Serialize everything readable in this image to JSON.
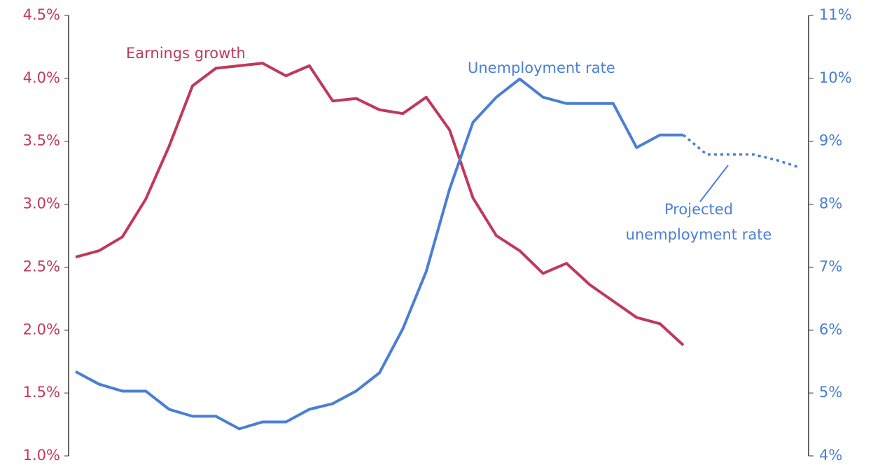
{
  "chart_data": {
    "type": "line",
    "categories": [
      null,
      null,
      null,
      null,
      null,
      null,
      null,
      null,
      null,
      null,
      null,
      null,
      null,
      null,
      null,
      null,
      null,
      null,
      null,
      null,
      null,
      null,
      null,
      null,
      null,
      null,
      null,
      null,
      null,
      null,
      null,
      null
    ],
    "series": [
      {
        "name": "Earnings growth",
        "color": "#c0395a",
        "line_style": "solid",
        "values": [
          2.58,
          2.63,
          2.74,
          3.04,
          3.46,
          3.94,
          4.08,
          4.1,
          4.12,
          4.02,
          4.1,
          3.82,
          3.84,
          3.75,
          3.72,
          3.85,
          3.59,
          3.05,
          2.75,
          2.63,
          2.45,
          2.53,
          2.36,
          2.23,
          2.1,
          2.05,
          1.88,
          null,
          null,
          null,
          null,
          null
        ]
      },
      {
        "name": "Unemployment rate",
        "color": "#4a7fd4",
        "axis": "y2",
        "line_style": "solid",
        "values": [
          5.34,
          5.14,
          5.03,
          5.03,
          4.74,
          4.63,
          4.63,
          4.43,
          4.54,
          4.54,
          4.74,
          4.83,
          5.03,
          5.32,
          6.02,
          6.93,
          8.24,
          9.3,
          9.7,
          9.99,
          9.7,
          9.6,
          9.6,
          9.6,
          8.9,
          9.1,
          9.1,
          null,
          null,
          null,
          null,
          null
        ]
      },
      {
        "name": "Projected unemployment rate",
        "color": "#4a7fd4",
        "axis": "y2",
        "line_style": "dotted",
        "values": [
          null,
          null,
          null,
          null,
          null,
          null,
          null,
          null,
          null,
          null,
          null,
          null,
          null,
          null,
          null,
          null,
          null,
          null,
          null,
          null,
          null,
          null,
          null,
          null,
          null,
          null,
          9.1,
          8.79,
          8.79,
          8.79,
          8.7,
          8.58
        ]
      }
    ],
    "ylim": [
      1.0,
      4.5
    ],
    "yticks": [
      {
        "value": 1.0,
        "label": "1.0%"
      },
      {
        "value": 1.5,
        "label": "1.5%"
      },
      {
        "value": 2.0,
        "label": "2.0%"
      },
      {
        "value": 2.5,
        "label": "2.5%"
      },
      {
        "value": 3.0,
        "label": "3.0%"
      },
      {
        "value": 3.5,
        "label": "3.5%"
      },
      {
        "value": 4.0,
        "label": "4.0%"
      },
      {
        "value": 4.5,
        "label": "4.5%"
      }
    ],
    "y2lim": [
      4,
      11
    ],
    "y2ticks": [
      {
        "value": 4,
        "label": "4%"
      },
      {
        "value": 5,
        "label": "5%"
      },
      {
        "value": 6,
        "label": "6%"
      },
      {
        "value": 7,
        "label": "7%"
      },
      {
        "value": 8,
        "label": "8%"
      },
      {
        "value": 9,
        "label": "9%"
      },
      {
        "value": 10,
        "label": "10%"
      },
      {
        "value": 11,
        "label": "11%"
      }
    ],
    "grid": false
  }
}
